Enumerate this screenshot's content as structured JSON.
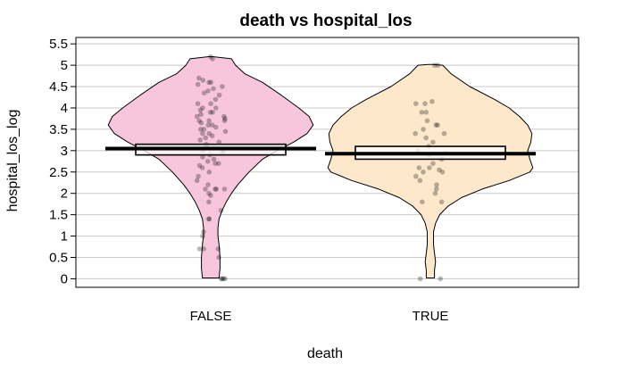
{
  "chart_data": {
    "type": "pirate",
    "title": "death vs hospital_los",
    "xlabel": "death",
    "ylabel": "hospital_los_log",
    "categories": [
      "FALSE",
      "TRUE"
    ],
    "ylim": [
      -0.2,
      5.65
    ],
    "yticks": [
      0,
      0.5,
      1,
      1.5,
      2,
      2.5,
      3,
      3.5,
      4,
      4.5,
      5,
      5.5
    ],
    "ytick_labels": [
      "0",
      "0.5",
      "1",
      "1.5",
      "2",
      "2.5",
      "3",
      "3.5",
      "4",
      "4.5",
      "5",
      "5.5"
    ],
    "grid": true,
    "groups": [
      {
        "category": "FALSE",
        "mean": 3.05,
        "ci_low": 2.9,
        "ci_high": 3.15,
        "fill_color": "#f7c6dc",
        "density": [
          [
            5.2,
            0.02
          ],
          [
            5.15,
            0.2
          ],
          [
            5.0,
            0.24
          ],
          [
            4.8,
            0.33
          ],
          [
            4.6,
            0.5
          ],
          [
            4.3,
            0.68
          ],
          [
            4.0,
            0.85
          ],
          [
            3.8,
            0.95
          ],
          [
            3.6,
            0.99
          ],
          [
            3.4,
            0.93
          ],
          [
            3.2,
            0.8
          ],
          [
            3.0,
            0.64
          ],
          [
            2.8,
            0.5
          ],
          [
            2.5,
            0.37
          ],
          [
            2.2,
            0.26
          ],
          [
            2.0,
            0.2
          ],
          [
            1.8,
            0.15
          ],
          [
            1.6,
            0.11
          ],
          [
            1.4,
            0.08
          ],
          [
            1.2,
            0.07
          ],
          [
            1.0,
            0.07
          ],
          [
            0.8,
            0.08
          ],
          [
            0.5,
            0.09
          ],
          [
            0.25,
            0.09
          ],
          [
            0.02,
            0.08
          ]
        ],
        "points": [
          5.2,
          5.15,
          4.7,
          4.65,
          4.6,
          4.6,
          4.55,
          4.5,
          4.45,
          4.4,
          4.35,
          4.3,
          4.2,
          4.1,
          4.1,
          4.0,
          4.0,
          3.95,
          3.9,
          3.9,
          3.85,
          3.8,
          3.8,
          3.75,
          3.7,
          3.7,
          3.7,
          3.65,
          3.6,
          3.6,
          3.55,
          3.5,
          3.5,
          3.45,
          3.4,
          3.4,
          3.35,
          3.3,
          3.25,
          3.2,
          3.15,
          3.1,
          3.05,
          3.0,
          3.0,
          2.95,
          2.9,
          2.85,
          2.8,
          2.75,
          2.7,
          2.7,
          2.65,
          2.6,
          2.5,
          2.4,
          2.3,
          2.2,
          2.1,
          2.1,
          2.1,
          2.1,
          2.0,
          1.95,
          1.8,
          1.6,
          1.4,
          1.4,
          1.1,
          1.0,
          0.7,
          0.7,
          0.7,
          0.5,
          0.0,
          0.0,
          0.0,
          0.0
        ]
      },
      {
        "category": "TRUE",
        "mean": 2.93,
        "ci_low": 2.8,
        "ci_high": 3.1,
        "fill_color": "#fde8cc",
        "density": [
          [
            5.02,
            0.02
          ],
          [
            5.0,
            0.12
          ],
          [
            4.8,
            0.2
          ],
          [
            4.5,
            0.38
          ],
          [
            4.2,
            0.62
          ],
          [
            4.0,
            0.76
          ],
          [
            3.8,
            0.86
          ],
          [
            3.6,
            0.94
          ],
          [
            3.4,
            0.98
          ],
          [
            3.2,
            0.97
          ],
          [
            3.0,
            0.94
          ],
          [
            2.8,
            0.96
          ],
          [
            2.6,
            0.99
          ],
          [
            2.5,
            0.96
          ],
          [
            2.3,
            0.76
          ],
          [
            2.1,
            0.5
          ],
          [
            1.9,
            0.3
          ],
          [
            1.7,
            0.17
          ],
          [
            1.5,
            0.09
          ],
          [
            1.3,
            0.05
          ],
          [
            1.1,
            0.03
          ],
          [
            0.95,
            0.03
          ],
          [
            0.8,
            0.03
          ],
          [
            0.6,
            0.04
          ],
          [
            0.4,
            0.05
          ],
          [
            0.2,
            0.04
          ],
          [
            0.02,
            0.04
          ]
        ],
        "points": [
          5.0,
          5.0,
          4.15,
          4.1,
          4.1,
          3.9,
          3.9,
          3.7,
          3.6,
          3.6,
          3.5,
          3.4,
          3.4,
          3.3,
          3.2,
          3.1,
          3.0,
          2.95,
          2.9,
          2.8,
          2.7,
          2.6,
          2.6,
          2.55,
          2.5,
          2.5,
          2.4,
          2.3,
          2.2,
          2.1,
          2.0,
          1.8,
          1.8,
          0.0,
          0.0
        ]
      }
    ]
  }
}
